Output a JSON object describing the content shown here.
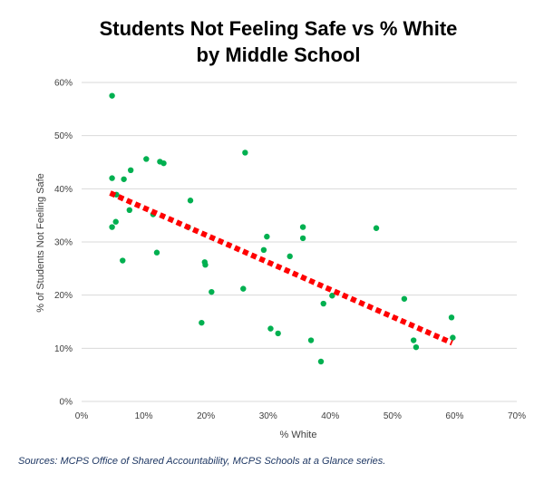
{
  "colors": {
    "points": "#00b050",
    "trendline": "#ff0000",
    "gridline": "#d9d9d9",
    "source_text": "#1f3864"
  },
  "source": "Sources: MCPS Office of Shared Accountability, MCPS Schools at a Glance series.",
  "chart_data": {
    "type": "scatter",
    "title": "Students Not Feeling Safe vs % White",
    "subtitle": "by Middle School",
    "xlabel": "% White",
    "ylabel": "% of Students Not Feeling Safe",
    "xlim": [
      0,
      70
    ],
    "ylim": [
      0,
      60
    ],
    "x_ticks": [
      0,
      10,
      20,
      30,
      40,
      50,
      60,
      70
    ],
    "y_ticks": [
      0,
      10,
      20,
      30,
      40,
      50,
      60
    ],
    "x_tick_labels": [
      "0%",
      "10%",
      "20%",
      "30%",
      "40%",
      "50%",
      "60%",
      "70%"
    ],
    "y_tick_labels": [
      "0%",
      "10%",
      "20%",
      "30%",
      "40%",
      "50%",
      "60%"
    ],
    "grid": "horizontal",
    "legend": "none",
    "trendline": {
      "style": "dashed",
      "x": [
        4.6,
        59.6
      ],
      "y": [
        39.2,
        11.0
      ]
    },
    "series": [
      {
        "x": [
          4.9,
          4.9,
          4.9,
          5.6,
          5.5,
          6.8,
          6.6,
          7.9,
          7.7,
          10.4,
          11.5,
          12.6,
          13.2,
          12.1,
          17.1,
          17.5,
          19.3,
          19.8,
          19.9,
          20.9,
          26.3,
          26.0,
          29.3,
          29.8,
          30.4,
          31.6,
          33.5,
          35.6,
          35.6,
          36.9,
          38.5,
          38.9,
          40.3,
          47.4,
          51.9,
          53.4,
          53.8,
          59.5,
          59.7
        ],
        "y": [
          57.5,
          42.0,
          32.8,
          38.9,
          33.8,
          41.8,
          26.5,
          43.5,
          36.0,
          45.6,
          35.2,
          45.1,
          44.8,
          28.0,
          32.8,
          37.8,
          14.8,
          26.2,
          25.7,
          20.6,
          46.8,
          21.2,
          28.5,
          31.0,
          13.7,
          12.8,
          27.3,
          32.8,
          30.7,
          11.5,
          7.5,
          18.4,
          19.9,
          32.6,
          19.3,
          11.5,
          10.2,
          15.8,
          12.0
        ]
      }
    ]
  }
}
